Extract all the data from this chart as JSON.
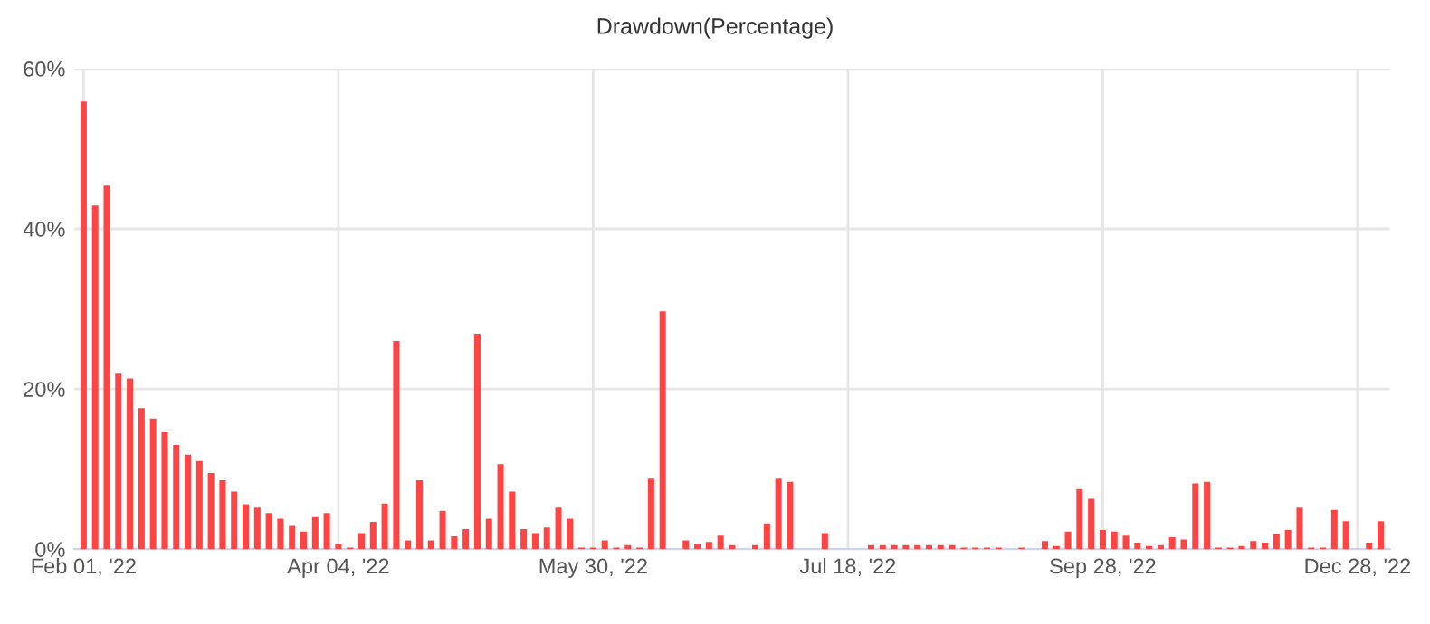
{
  "chart_data": {
    "type": "bar",
    "title": "Drawdown(Percentage)",
    "categories": [
      "Feb 01, '22",
      null,
      null,
      null,
      null,
      null,
      null,
      null,
      null,
      null,
      null,
      null,
      null,
      null,
      null,
      null,
      null,
      null,
      null,
      null,
      null,
      null,
      "Apr 04, '22",
      null,
      null,
      null,
      null,
      null,
      null,
      null,
      null,
      null,
      null,
      null,
      null,
      null,
      null,
      null,
      null,
      null,
      null,
      null,
      null,
      null,
      "May 30, '22",
      null,
      null,
      null,
      null,
      null,
      null,
      null,
      null,
      null,
      null,
      null,
      null,
      null,
      null,
      null,
      null,
      null,
      null,
      null,
      null,
      null,
      "Jul 18, '22",
      null,
      null,
      null,
      null,
      null,
      null,
      null,
      null,
      null,
      null,
      null,
      null,
      null,
      null,
      null,
      null,
      null,
      null,
      null,
      null,
      null,
      "Sep 28, '22",
      null,
      null,
      null,
      null,
      null,
      null,
      null,
      null,
      null,
      null,
      null,
      null,
      null,
      null,
      null,
      null,
      null,
      null,
      null,
      null,
      null,
      "Dec 28, '22",
      null,
      null
    ],
    "values": [
      55.9,
      42.9,
      45.4,
      21.9,
      21.3,
      17.6,
      16.3,
      14.6,
      13.0,
      11.8,
      11.0,
      9.5,
      8.6,
      7.2,
      5.6,
      5.2,
      4.5,
      3.8,
      2.9,
      2.2,
      4.0,
      4.5,
      0.6,
      0.2,
      2.0,
      3.4,
      5.7,
      26.0,
      1.1,
      8.6,
      1.1,
      4.8,
      1.6,
      2.5,
      26.9,
      3.8,
      10.6,
      7.2,
      2.5,
      2.0,
      2.7,
      5.2,
      3.8,
      0.2,
      0.2,
      1.1,
      0.2,
      0.5,
      0.2,
      8.8,
      29.7,
      0,
      1.1,
      0.7,
      0.9,
      1.7,
      0.5,
      0,
      0.5,
      3.2,
      8.8,
      8.4,
      0,
      0,
      2.0,
      0,
      0,
      0,
      0.5,
      0.5,
      0.5,
      0.5,
      0.5,
      0.5,
      0.5,
      0.5,
      0.2,
      0.2,
      0.2,
      0.2,
      0,
      0.2,
      0,
      1.0,
      0.4,
      2.2,
      7.5,
      6.3,
      2.4,
      2.2,
      1.7,
      0.8,
      0.4,
      0.5,
      1.5,
      1.2,
      8.2,
      8.4,
      0.2,
      0.2,
      0.4,
      1.0,
      0.8,
      1.9,
      2.4,
      5.2,
      0.2,
      0.2,
      4.9,
      3.5,
      0,
      0.8,
      3.5
    ],
    "color": "#ff4444",
    "ylim": [
      0,
      60
    ],
    "yticks": [
      {
        "value": 0,
        "label": "0%"
      },
      {
        "value": 20,
        "label": "20%"
      },
      {
        "value": 40,
        "label": "40%"
      },
      {
        "value": 60,
        "label": "60%"
      }
    ],
    "grid": true
  }
}
